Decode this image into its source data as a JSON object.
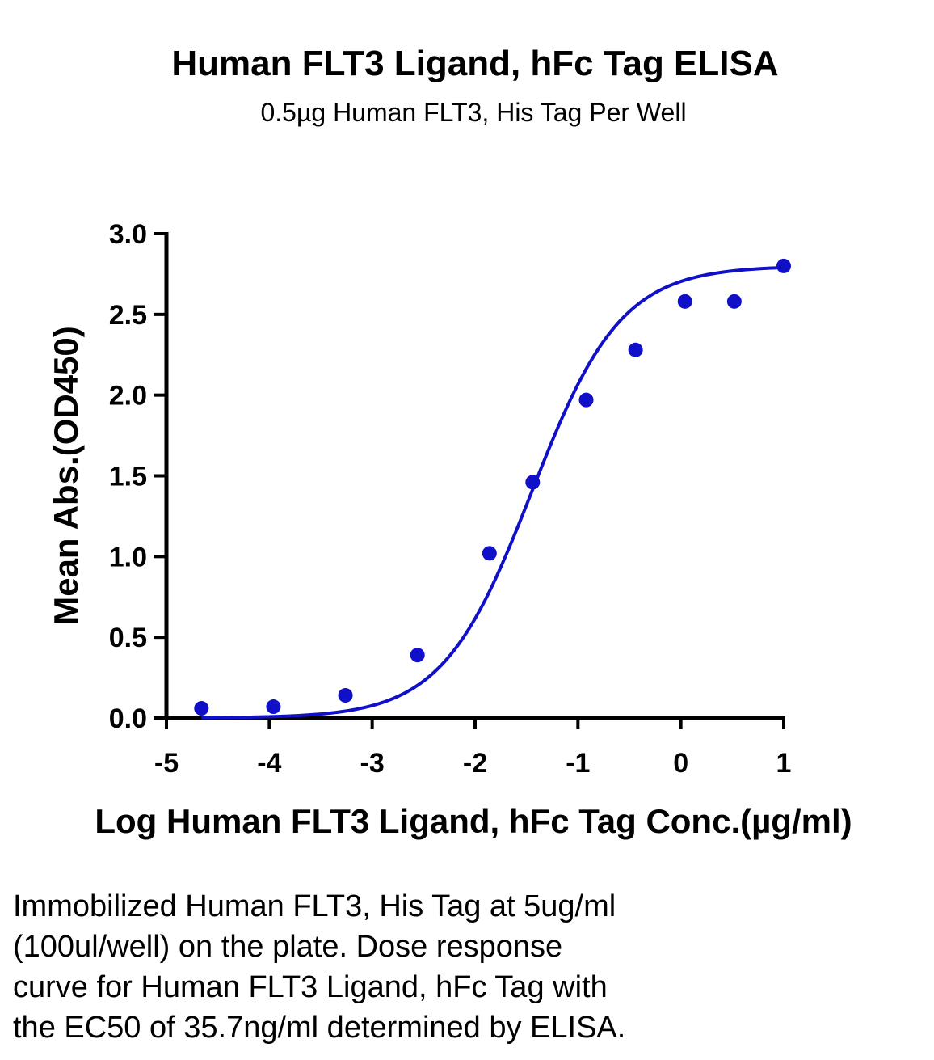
{
  "chart_data": {
    "type": "scatter",
    "title": "Human FLT3 Ligand, hFc Tag ELISA",
    "subtitle": "0.5µg Human FLT3, His Tag Per Well",
    "xlabel": "Log Human FLT3 Ligand, hFc Tag Conc.(µg/ml)",
    "ylabel": "Mean Abs.(OD450)",
    "xlim": [
      -5,
      1
    ],
    "ylim": [
      0,
      3.0
    ],
    "x_ticks": [
      "-5",
      "-4",
      "-3",
      "-2",
      "-1",
      "0",
      "1"
    ],
    "y_ticks": [
      "0.0",
      "0.5",
      "1.0",
      "1.5",
      "2.0",
      "2.5",
      "3.0"
    ],
    "grid": false,
    "colors": {
      "series": "#1010c8",
      "axis": "#000000"
    },
    "series": [
      {
        "x": [
          -4.66,
          -3.96,
          -3.26,
          -2.56,
          -1.86,
          -1.44,
          -0.92,
          -0.44,
          0.04,
          0.52,
          1.0
        ],
        "y": [
          0.06,
          0.07,
          0.14,
          0.39,
          1.02,
          1.46,
          1.97,
          2.28,
          2.58,
          2.58,
          2.8
        ]
      }
    ],
    "fit_curve": {
      "type": "4PL",
      "bottom": 0.0,
      "top": 2.8,
      "log_ec50": -1.45,
      "hill": 1.0
    }
  },
  "caption": {
    "lines": [
      "Immobilized Human FLT3, His Tag at 5ug/ml",
      "(100ul/well) on the plate. Dose response",
      "curve for Human FLT3 Ligand, hFc Tag with",
      "the EC50 of 35.7ng/ml determined by ELISA."
    ]
  }
}
